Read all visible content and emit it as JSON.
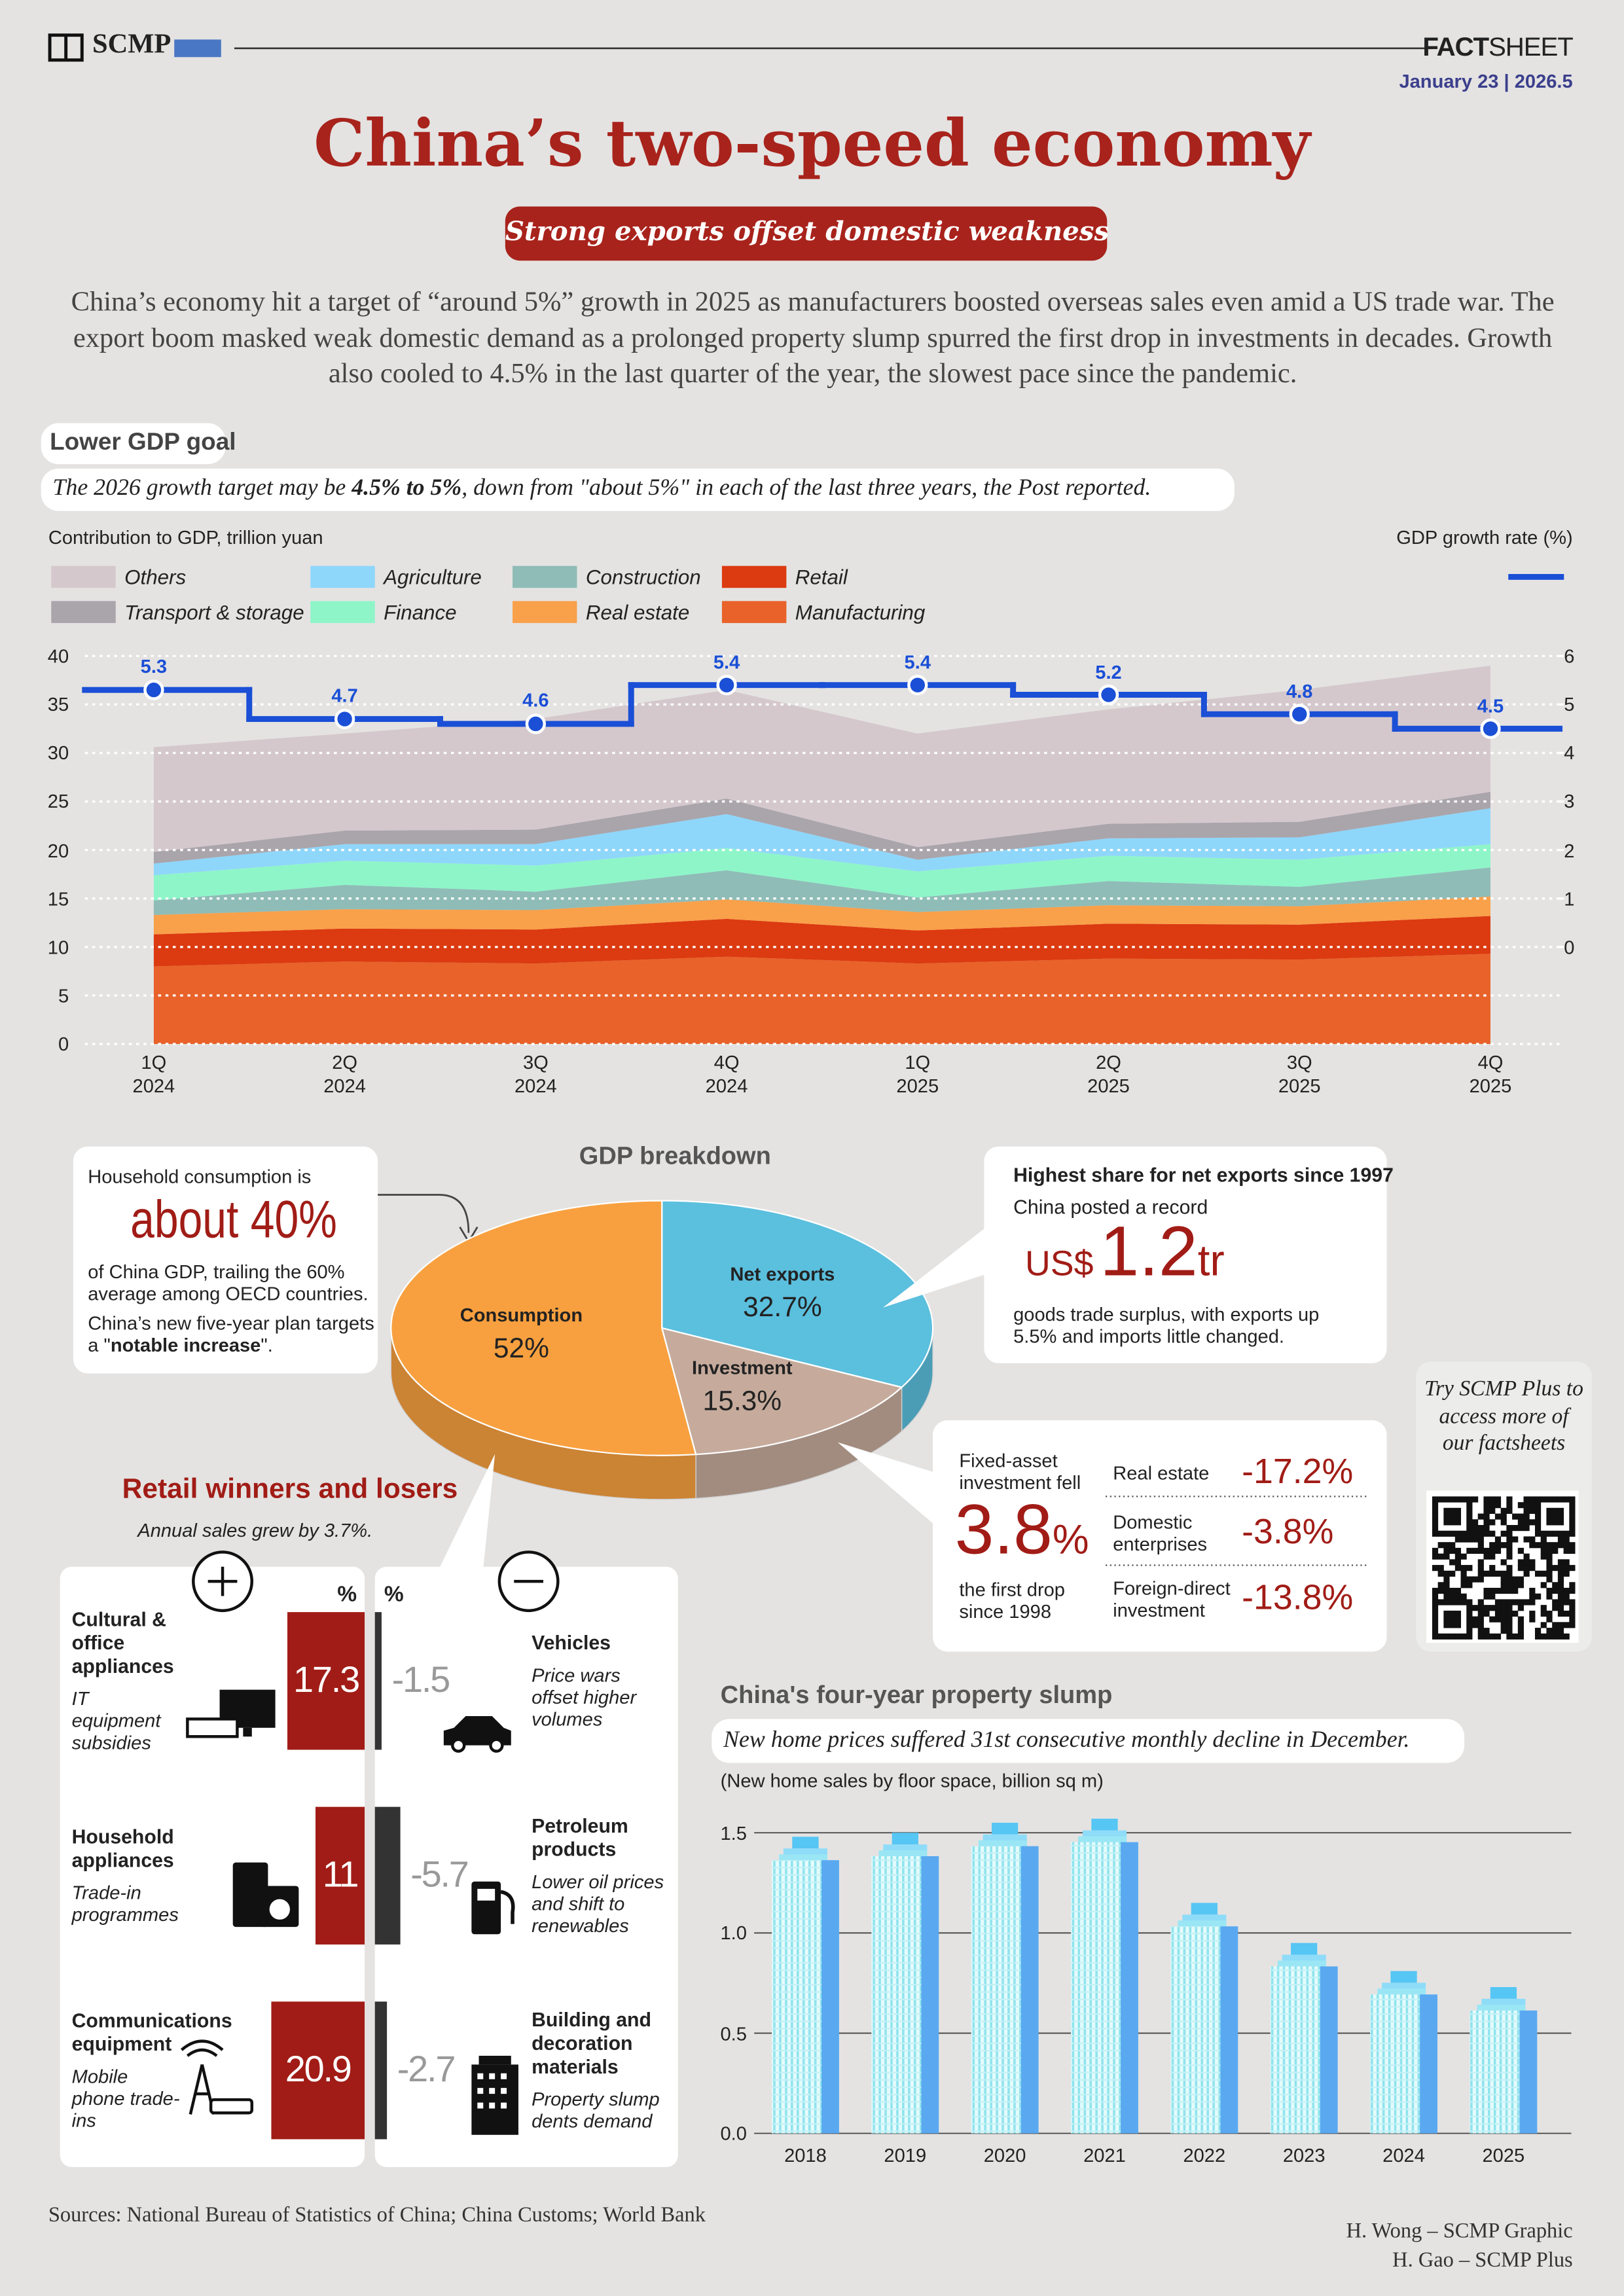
{
  "header": {
    "brand": "SCMP",
    "fact": "FACT",
    "sheet": "SHEET",
    "date": "January 23 | 2026.5"
  },
  "title": "China’s two-speed economy",
  "subtitle": "Strong exports offset domestic weakness",
  "intro": "China’s economy hit a target of “around 5%” growth in 2025 as manufacturers boosted overseas sales even amid a US trade war. The export boom masked weak domestic demand as a prolonged property slump spurred the first drop in investments in decades. Growth also cooled to 4.5% in the last quarter of the year, the slowest pace since the pandemic.",
  "gdp_goal": {
    "heading": "Lower GDP goal",
    "note_before": "The 2026 growth target may be ",
    "note_bold": "4.5% to 5%",
    "note_after": ", down from \"about 5%\" in each of the last three years, the Post reported."
  },
  "chart_data": [
    {
      "type": "area",
      "stacked": true,
      "grid": true,
      "y_label": "Contribution to GDP, trillion yuan",
      "y2_label": "GDP growth rate (%)",
      "categories": [
        "1Q 2024",
        "2Q 2024",
        "3Q 2024",
        "4Q 2024",
        "1Q 2025",
        "2Q 2025",
        "3Q 2025",
        "4Q 2025"
      ],
      "ylim": [
        0,
        40
      ],
      "yticks": [
        0,
        5,
        10,
        15,
        20,
        25,
        30,
        35,
        40
      ],
      "y2lim": [
        -2,
        6
      ],
      "y2ticks": [
        0,
        1,
        2,
        3,
        4,
        5,
        6
      ],
      "series": [
        {
          "name": "Manufacturing",
          "color": "#e8622a",
          "values": [
            8.0,
            8.5,
            8.3,
            9.0,
            8.3,
            8.8,
            8.7,
            9.3
          ]
        },
        {
          "name": "Retail",
          "color": "#dc3a10",
          "values": [
            3.3,
            3.4,
            3.5,
            3.9,
            3.4,
            3.6,
            3.6,
            3.9
          ]
        },
        {
          "name": "Real estate",
          "color": "#f9a04a",
          "values": [
            2.0,
            2.0,
            2.0,
            2.0,
            1.9,
            1.9,
            1.9,
            2.0
          ]
        },
        {
          "name": "Construction",
          "color": "#8fbcb7",
          "values": [
            1.5,
            2.5,
            1.9,
            3.0,
            1.5,
            2.5,
            2.0,
            3.0
          ]
        },
        {
          "name": "Finance",
          "color": "#8ef5c9",
          "values": [
            2.6,
            2.5,
            2.7,
            2.3,
            2.7,
            2.6,
            2.8,
            2.4
          ]
        },
        {
          "name": "Agriculture",
          "color": "#8fd6fb",
          "values": [
            1.2,
            1.7,
            2.2,
            3.5,
            1.2,
            1.8,
            2.3,
            3.7
          ]
        },
        {
          "name": "Transport & storage",
          "color": "#a9a5ab",
          "values": [
            1.2,
            1.4,
            1.5,
            1.6,
            1.3,
            1.5,
            1.6,
            1.7
          ]
        },
        {
          "name": "Others",
          "color": "#d5c8cd",
          "values": [
            10.8,
            10.0,
            11.4,
            11.2,
            11.7,
            11.8,
            13.6,
            13.0
          ]
        },
        {
          "type": "line",
          "line_shape": "step",
          "axis": "y2",
          "color": "#1a4fd6",
          "values": [
            5.3,
            4.7,
            4.6,
            5.4,
            5.4,
            5.2,
            4.8,
            4.5
          ]
        }
      ]
    },
    {
      "type": "pie",
      "title": "GDP breakdown",
      "categories": [
        "Net exports",
        "Investment",
        "Consumption"
      ],
      "values": [
        32.7,
        15.3,
        52
      ],
      "value_labels": [
        "32.7%",
        "15.3%",
        "52%"
      ],
      "colors": [
        "#5bbfde",
        "#c6ab9c",
        "#f8a03f"
      ]
    },
    {
      "type": "bar",
      "orientation": "horizontal",
      "title": "Retail winners and losers",
      "subtitle": "Annual sales grew by 3.7%.",
      "unit": "%",
      "categories": [
        "Cultural & office appliances",
        "Household appliances",
        "Communications equipment",
        "Vehicles",
        "Petroleum products",
        "Building and decoration materials"
      ],
      "descriptions": [
        "IT equipment subsidies",
        "Trade-in programmes",
        "Mobile phone trade-ins",
        "Price wars offset higher volumes",
        "Lower oil prices and shift to renewables",
        "Property slump dents demand"
      ],
      "values": [
        17.3,
        11,
        20.9,
        -1.5,
        -5.7,
        -2.7
      ],
      "colors": {
        "positive": "#a11c16",
        "negative": "#333333"
      }
    },
    {
      "type": "bar",
      "orientation": "vertical",
      "grid": true,
      "title": "China's four-year property slump",
      "note": "New home prices suffered 31st consecutive monthly decline in December.",
      "y_label": "(New home sales by floor space, billion sq m)",
      "categories": [
        "2018",
        "2019",
        "2020",
        "2021",
        "2022",
        "2023",
        "2024",
        "2025"
      ],
      "values": [
        1.48,
        1.5,
        1.55,
        1.57,
        1.15,
        0.95,
        0.81,
        0.73
      ],
      "ylim": [
        0,
        1.6
      ],
      "yticks": [
        {
          "value": 0,
          "label": "0.0"
        },
        {
          "value": 0.5,
          "label": "0.5"
        },
        {
          "value": 1,
          "label": "1.0"
        },
        {
          "value": 1.5,
          "label": "1.5"
        }
      ],
      "color": "#5aa9f0"
    }
  ],
  "household": {
    "lead": "Household consumption is",
    "figure": "about 40%",
    "body": "of China GDP, trailing the 60% average among OECD countries.",
    "plan_before": "China’s new five-year plan targets a \"",
    "plan_bold": "notable increase",
    "plan_after": "\"."
  },
  "net_exports_note": {
    "heading": "Highest share for net exports since 1997",
    "lead": "China posted a record",
    "currency": "US$",
    "figure": "1.2",
    "unit": "tr",
    "body": "goods trade surplus, with exports up 5.5% and imports little changed."
  },
  "investment_note": {
    "lead": "Fixed-asset investment fell",
    "figure": "3.8",
    "unit": "%",
    "tail": "the first drop since 1998",
    "rows": [
      [
        "Real estate",
        "-17.2%"
      ],
      [
        "Domestic enterprises",
        "-3.8%"
      ],
      [
        "Foreign-direct investment",
        "-13.8%"
      ]
    ]
  },
  "promo": "Try SCMP Plus to access more of our factsheets",
  "sources": "Sources: National Bureau of Statistics of China; China Customs; World Bank",
  "credits": [
    "H. Wong – SCMP Graphic",
    "H. Gao – SCMP Plus"
  ]
}
